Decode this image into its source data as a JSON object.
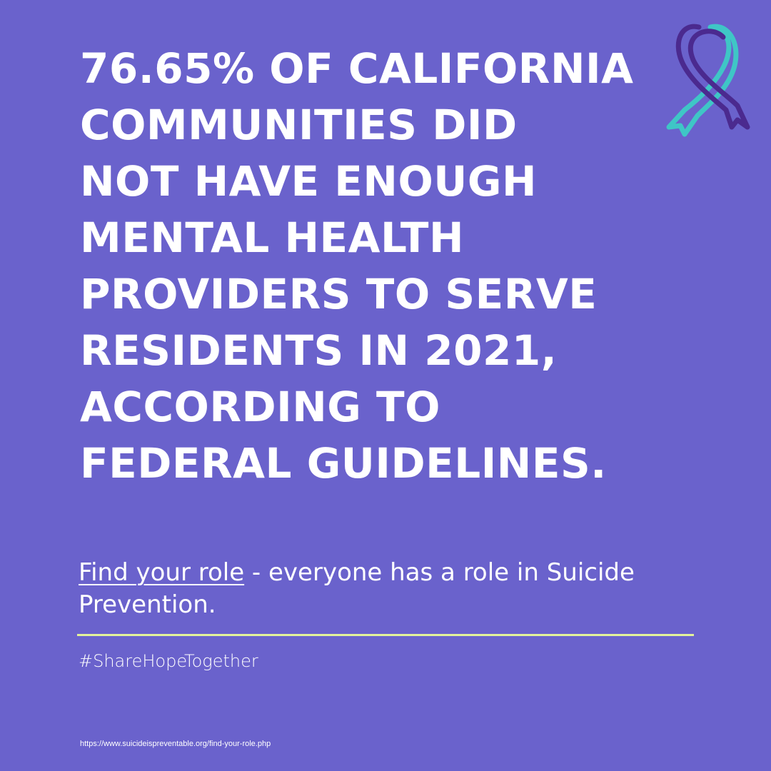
{
  "headline": {
    "lines": [
      "76.65% OF CALIFORNIA",
      "COMMUNITIES DID",
      "NOT HAVE ENOUGH",
      "MENTAL HEALTH",
      "PROVIDERS TO SERVE",
      "RESIDENTS IN 2021,",
      "ACCORDING TO",
      "FEDERAL GUIDELINES."
    ]
  },
  "ribbon": {
    "icon": "awareness-ribbon-icon",
    "colors": {
      "teal": "#3fc6c6",
      "purple": "#4b2a8f"
    }
  },
  "cta": {
    "link_text": "Find your role",
    "rest_text": " - everyone has a role in Suicide Prevention."
  },
  "hashtag": "#ShareHopeTogether",
  "source_url": "https://www.suicideispreventable.org/find-your-role.php",
  "colors": {
    "background": "#6a62cc",
    "text": "#ffffff",
    "divider": "#e3f39a"
  }
}
